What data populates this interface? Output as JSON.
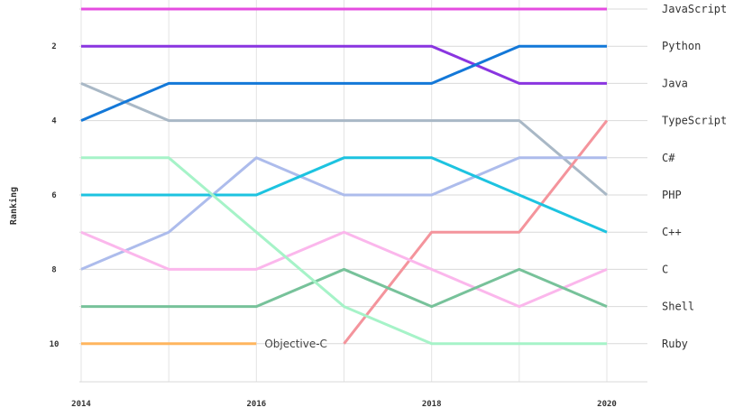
{
  "chart_data": {
    "type": "line",
    "title": "",
    "xlabel": "",
    "ylabel": "Ranking",
    "x": [
      2014,
      2015,
      2016,
      2017,
      2018,
      2019,
      2020
    ],
    "xticks": [
      "2014",
      "2016",
      "2018",
      "2020"
    ],
    "yticks": [
      "2",
      "4",
      "6",
      "8",
      "10"
    ],
    "ylim": [
      1,
      10
    ],
    "y_inverted": true,
    "grid": true,
    "annotations": [
      {
        "text": "Objective-C",
        "x": 2016,
        "y": 10
      }
    ],
    "series": [
      {
        "name": "JavaScript",
        "color": "#e54ce0",
        "values": [
          1,
          1,
          1,
          1,
          1,
          1,
          1
        ]
      },
      {
        "name": "Python",
        "color": "#8a35e0",
        "values": [
          2,
          2,
          2,
          2,
          2,
          3,
          3
        ]
      },
      {
        "name": "Java",
        "color": "#a9b8c6",
        "values": [
          3,
          4,
          4,
          4,
          4,
          4,
          6
        ]
      },
      {
        "name": "TypeScript",
        "color": "#f4949c",
        "values": [
          null,
          null,
          null,
          10,
          7,
          7,
          4
        ]
      },
      {
        "name": "C#",
        "color": "#1378d8",
        "values": [
          4,
          3,
          3,
          3,
          3,
          2,
          2
        ]
      },
      {
        "name": "PHP",
        "color": "#adbcec",
        "values": [
          8,
          7,
          5,
          6,
          6,
          5,
          5
        ]
      },
      {
        "name": "C++",
        "color": "#1dc3e0",
        "values": [
          6,
          6,
          6,
          5,
          5,
          6,
          7
        ]
      },
      {
        "name": "C",
        "color": "#fbb7ec",
        "values": [
          7,
          8,
          8,
          7,
          8,
          9,
          8
        ]
      },
      {
        "name": "Shell",
        "color": "#77c29a",
        "values": [
          9,
          9,
          9,
          8,
          9,
          8,
          9
        ]
      },
      {
        "name": "Ruby",
        "color": "#a6f3c8",
        "values": [
          5,
          5,
          7,
          9,
          10,
          10,
          10
        ]
      },
      {
        "name": "Objective-C",
        "color": "#ffb55e",
        "values": [
          10,
          10,
          10,
          null,
          null,
          null,
          null
        ]
      }
    ],
    "right_labels": [
      "JavaScript",
      "Python",
      "Java",
      "TypeScript",
      "C#",
      "PHP",
      "C++",
      "C",
      "Shell",
      "Ruby"
    ]
  }
}
